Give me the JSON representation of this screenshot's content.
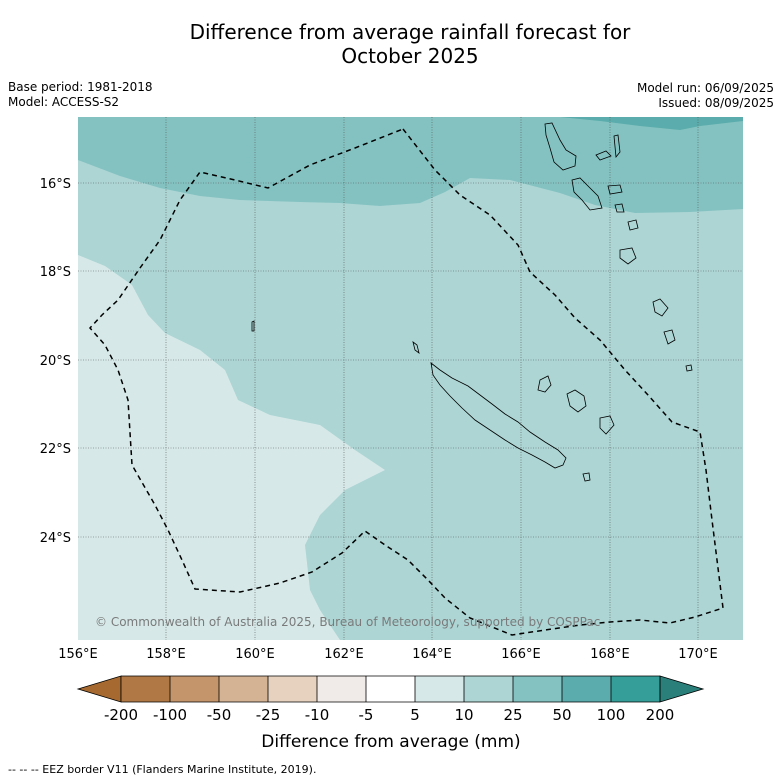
{
  "header": {
    "title_line1": "Difference from average rainfall forecast for",
    "title_line2": "October 2025",
    "base_period": "Base period: 1981-2018",
    "model": "Model: ACCESS-S2",
    "model_run": "Model run: 06/09/2025",
    "issued": "Issued: 08/09/2025"
  },
  "map": {
    "copyright": "© Commonwealth of Australia 2025, Bureau of Meteorology, supported by COSPPac",
    "lat_labels": [
      "16°S",
      "18°S",
      "20°S",
      "22°S",
      "24°S"
    ],
    "lon_labels": [
      "156°E",
      "158°E",
      "160°E",
      "162°E",
      "164°E",
      "166°E",
      "168°E",
      "170°E"
    ],
    "extent": {
      "lon": [
        156,
        171
      ],
      "lat": [
        -26.2,
        -14.6
      ]
    },
    "colors": {
      "c5_10": "#d6e9e8",
      "c10_25": "#acd5d4",
      "c25_50": "#84c2c1",
      "c50_100": "#5aadac"
    }
  },
  "legend": {
    "ticks": [
      "-200",
      "-100",
      "-50",
      "-25",
      "-10",
      "-5",
      "5",
      "10",
      "25",
      "50",
      "100",
      "200"
    ],
    "colors": [
      "#a6692f",
      "#b07845",
      "#c4956b",
      "#d4b294",
      "#e6d2bf",
      "#f0ebe8",
      "#ffffff",
      "#d6e9e8",
      "#acd5d4",
      "#84c2c1",
      "#5aadac",
      "#359e98",
      "#2a7f7a"
    ],
    "label": "Difference from average (mm)"
  },
  "footnote": "--  --  -- EEZ border V11 (Flanders Marine Institute, 2019)."
}
